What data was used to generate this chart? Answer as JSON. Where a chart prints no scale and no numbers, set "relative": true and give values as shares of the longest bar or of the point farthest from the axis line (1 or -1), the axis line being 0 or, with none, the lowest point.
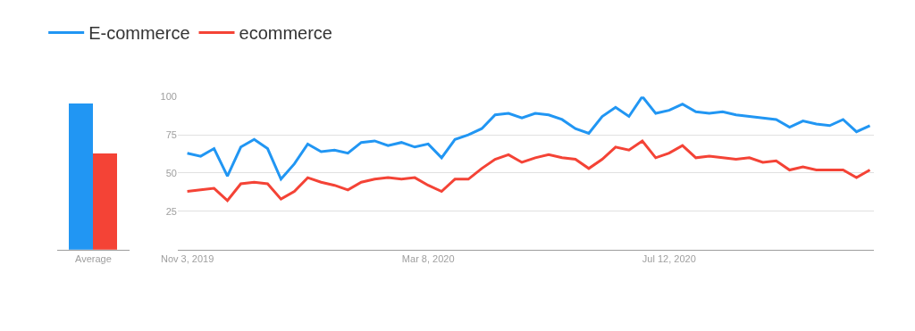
{
  "chart_data": [
    {
      "type": "bar",
      "relative": true,
      "categories": [
        "Average"
      ],
      "tick_labels": "x",
      "grid": false,
      "series": [
        {
          "color": "#2196f3",
          "values": [
            1
          ]
        },
        {
          "color": "#f44336",
          "values": [
            0.66
          ]
        }
      ]
    },
    {
      "type": "line",
      "legend": "top left",
      "grid": "y",
      "marker": "none",
      "line_style": "solid",
      "x": [
        "2019-11-03",
        "2019-11-10",
        "2019-11-17",
        "2019-11-24",
        "2019-12-01",
        "2019-12-08",
        "2019-12-15",
        "2019-12-22",
        "2019-12-29",
        "2020-01-05",
        "2020-01-12",
        "2020-01-19",
        "2020-01-26",
        "2020-02-02",
        "2020-02-09",
        "2020-02-16",
        "2020-02-23",
        "2020-03-01",
        "2020-03-08",
        "2020-03-15",
        "2020-03-22",
        "2020-03-29",
        "2020-04-05",
        "2020-04-12",
        "2020-04-19",
        "2020-04-26",
        "2020-05-03",
        "2020-05-10",
        "2020-05-17",
        "2020-05-24",
        "2020-05-31",
        "2020-06-07",
        "2020-06-14",
        "2020-06-21",
        "2020-06-28",
        "2020-07-05",
        "2020-07-12",
        "2020-07-19",
        "2020-07-26",
        "2020-08-02",
        "2020-08-09",
        "2020-08-16",
        "2020-08-23",
        "2020-08-30",
        "2020-09-06",
        "2020-09-13",
        "2020-09-20",
        "2020-09-27",
        "2020-10-04",
        "2020-10-11",
        "2020-10-18",
        "2020-10-25"
      ],
      "xlim": [
        "2019-10-29",
        "2020-10-27"
      ],
      "xticks": [
        {
          "value": "2019-11-03",
          "label": "Nov 3, 2019"
        },
        {
          "value": "2020-03-08",
          "label": "Mar 8, 2020"
        },
        {
          "value": "2020-07-12",
          "label": "Jul 12, 2020"
        }
      ],
      "ylim": [
        0,
        100
      ],
      "yticks": [
        25,
        50,
        75,
        100
      ],
      "series": [
        {
          "name": "E-commerce",
          "color": "#2196f3",
          "values": [
            63,
            61,
            66,
            48,
            67,
            72,
            66,
            46,
            56,
            69,
            64,
            65,
            63,
            70,
            71,
            68,
            70,
            67,
            69,
            60,
            72,
            75,
            79,
            88,
            89,
            86,
            89,
            88,
            85,
            79,
            76,
            87,
            93,
            87,
            100,
            89,
            91,
            95,
            90,
            89,
            90,
            88,
            87,
            86,
            85,
            80,
            84,
            82,
            81,
            85,
            77,
            81
          ]
        },
        {
          "name": "ecommerce",
          "color": "#f44336",
          "values": [
            38,
            39,
            40,
            32,
            43,
            44,
            43,
            33,
            38,
            47,
            44,
            42,
            39,
            44,
            46,
            47,
            46,
            47,
            42,
            38,
            46,
            46,
            53,
            59,
            62,
            57,
            60,
            62,
            60,
            59,
            53,
            59,
            67,
            65,
            71,
            60,
            63,
            68,
            60,
            61,
            60,
            59,
            60,
            57,
            58,
            52,
            54,
            52,
            52,
            52,
            47,
            52
          ]
        }
      ]
    }
  ]
}
